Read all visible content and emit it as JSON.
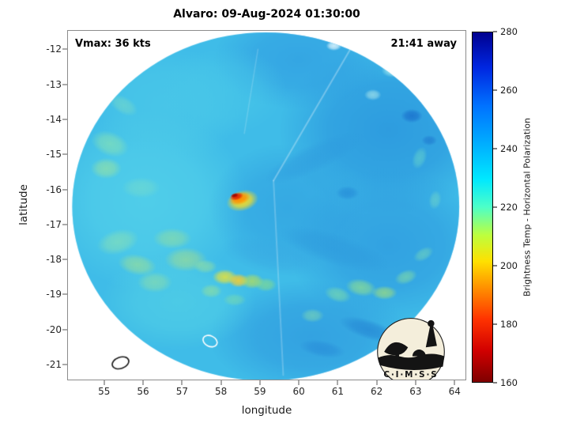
{
  "logo": {
    "text": "C·I·M·S·S"
  },
  "chart_data": {
    "type": "heatmap",
    "title": "Alvaro: 09-Aug-2024 01:30:00",
    "xlabel": "longitude",
    "ylabel": "latitude",
    "xlim": [
      54.05,
      64.3
    ],
    "ylim": [
      -21.45,
      -11.45
    ],
    "xticks": [
      55,
      56,
      57,
      58,
      59,
      60,
      61,
      62,
      63,
      64
    ],
    "yticks": [
      -12,
      -13,
      -14,
      -15,
      -16,
      -17,
      -18,
      -19,
      -20,
      -21
    ],
    "annotations": {
      "vmax": "Vmax: 36 kts",
      "eta": "21:41 away"
    },
    "colorbar": {
      "label": "Brightness Temp - Horizontal Polarization",
      "min": 160,
      "max": 280,
      "ticks": [
        160,
        180,
        200,
        220,
        240,
        260,
        280
      ],
      "stops": [
        {
          "pos": 0.0,
          "color": "#7f0000"
        },
        {
          "pos": 0.09,
          "color": "#d10000"
        },
        {
          "pos": 0.18,
          "color": "#ff3300"
        },
        {
          "pos": 0.27,
          "color": "#ff9100"
        },
        {
          "pos": 0.345,
          "color": "#ffe000"
        },
        {
          "pos": 0.42,
          "color": "#bdff3e"
        },
        {
          "pos": 0.5,
          "color": "#4dffc8"
        },
        {
          "pos": 0.58,
          "color": "#00e8ff"
        },
        {
          "pos": 0.67,
          "color": "#00b4ff"
        },
        {
          "pos": 0.79,
          "color": "#0072ff"
        },
        {
          "pos": 0.9,
          "color": "#0026e0"
        },
        {
          "pos": 1.0,
          "color": "#00008f"
        }
      ]
    },
    "disk": {
      "center_lon": 59.15,
      "center_lat": -16.49,
      "radius_deg": 4.97,
      "base_color": "#3fbce8"
    },
    "features": [
      [
        62.3,
        -14.3,
        2.8,
        2.4,
        0,
        "#2b97de",
        0.85
      ],
      [
        62.3,
        -17.6,
        2.6,
        2.2,
        0,
        "#2f9ce0",
        0.8
      ],
      [
        60.3,
        -20.2,
        2.6,
        1.6,
        0,
        "#2f9adf",
        0.75
      ],
      [
        60.0,
        -12.3,
        2.2,
        1.4,
        0,
        "#319fe2",
        0.75
      ],
      [
        56.1,
        -16.3,
        2.6,
        2.6,
        0,
        "#54d2ea",
        0.8
      ],
      [
        56.6,
        -13.6,
        2.0,
        1.7,
        0,
        "#4ccae9",
        0.7
      ],
      [
        56.9,
        -19.2,
        2.0,
        1.4,
        0,
        "#55d4e6",
        0.6
      ],
      [
        58.1,
        -13.2,
        1.6,
        1.3,
        0,
        "#49c8e9",
        0.55
      ],
      [
        59.7,
        -16.5,
        2.0,
        1.8,
        0,
        "#2f9de0",
        0.6
      ],
      [
        59.3,
        -17.9,
        1.3,
        0.5,
        12,
        "#38a8e3",
        0.5
      ],
      [
        60.4,
        -15.1,
        1.4,
        0.4,
        -25,
        "#2e9ade",
        0.5
      ],
      [
        60.9,
        -17.7,
        1.5,
        0.45,
        18,
        "#2d98dc",
        0.5
      ],
      [
        55.15,
        -14.7,
        0.5,
        0.35,
        20,
        "#8fe6ae",
        0.6
      ],
      [
        55.05,
        -15.4,
        0.4,
        0.3,
        0,
        "#a6e894",
        0.55
      ],
      [
        55.35,
        -17.5,
        0.55,
        0.35,
        -15,
        "#8ce2b2",
        0.6
      ],
      [
        55.85,
        -18.15,
        0.5,
        0.3,
        10,
        "#b5e87d",
        0.5
      ],
      [
        56.3,
        -18.65,
        0.45,
        0.3,
        0,
        "#9ce29a",
        0.5
      ],
      [
        55.95,
        -15.95,
        0.5,
        0.3,
        0,
        "#7fe0c4",
        0.45
      ],
      [
        56.75,
        -17.4,
        0.5,
        0.3,
        0,
        "#aae686",
        0.45
      ],
      [
        57.1,
        -18.0,
        0.55,
        0.35,
        0,
        "#c8e868",
        0.45
      ],
      [
        55.5,
        -13.6,
        0.4,
        0.25,
        30,
        "#8fe4b8",
        0.4
      ],
      [
        58.1,
        -18.5,
        0.32,
        0.22,
        0,
        "#e8e23a",
        0.85
      ],
      [
        58.45,
        -18.6,
        0.26,
        0.2,
        0,
        "#ffcf28",
        0.85
      ],
      [
        58.8,
        -18.62,
        0.3,
        0.22,
        0,
        "#bfe24f",
        0.7
      ],
      [
        59.15,
        -18.72,
        0.28,
        0.2,
        0,
        "#8fe07e",
        0.6
      ],
      [
        57.75,
        -18.9,
        0.28,
        0.2,
        0,
        "#9de490",
        0.55
      ],
      [
        58.35,
        -19.15,
        0.3,
        0.18,
        0,
        "#82dfa2",
        0.5
      ],
      [
        57.6,
        -18.2,
        0.3,
        0.2,
        0,
        "#a8e68c",
        0.5
      ],
      [
        58.55,
        -16.32,
        0.42,
        0.3,
        -15,
        "#ffdf1c",
        0.95
      ],
      [
        58.48,
        -16.26,
        0.28,
        0.18,
        -15,
        "#ff8a00",
        0.98
      ],
      [
        58.4,
        -16.2,
        0.18,
        0.11,
        -15,
        "#e01e00",
        1
      ],
      [
        58.35,
        -16.17,
        0.1,
        0.06,
        -15,
        "#9c0500",
        1
      ],
      [
        61.0,
        -19.0,
        0.35,
        0.22,
        15,
        "#82e0a6",
        0.6
      ],
      [
        61.6,
        -18.8,
        0.4,
        0.25,
        10,
        "#97e489",
        0.65
      ],
      [
        62.2,
        -18.95,
        0.33,
        0.2,
        0,
        "#b4e868",
        0.6
      ],
      [
        62.75,
        -18.5,
        0.3,
        0.2,
        -20,
        "#8fe49b",
        0.55
      ],
      [
        63.2,
        -17.85,
        0.28,
        0.18,
        -30,
        "#7fdfb4",
        0.5
      ],
      [
        60.35,
        -19.6,
        0.3,
        0.2,
        0,
        "#8fe2a8",
        0.5
      ],
      [
        63.1,
        -15.1,
        0.3,
        0.2,
        -70,
        "#6fdcc8",
        0.5
      ],
      [
        63.5,
        -16.3,
        0.25,
        0.18,
        -80,
        "#7fe0c2",
        0.45
      ],
      [
        62.9,
        -13.9,
        0.28,
        0.2,
        0,
        "#1565c8",
        0.65
      ],
      [
        63.35,
        -14.6,
        0.2,
        0.15,
        0,
        "#1a70cc",
        0.55
      ],
      [
        61.25,
        -16.1,
        0.3,
        0.2,
        0,
        "#1f80d4",
        0.5
      ],
      [
        61.8,
        -20.0,
        0.8,
        0.28,
        18,
        "#1f7cd0",
        0.55
      ],
      [
        60.6,
        -20.55,
        0.6,
        0.24,
        10,
        "#2484d6",
        0.5
      ],
      [
        62.7,
        -12.4,
        0.55,
        0.38,
        0,
        "#1b76cf",
        0.55
      ],
      [
        62.4,
        -12.6,
        0.28,
        0.2,
        0,
        "#b2f2f0",
        0.7
      ],
      [
        60.9,
        -11.9,
        0.2,
        0.14,
        0,
        "#eefbff",
        0.8
      ],
      [
        61.9,
        -13.3,
        0.22,
        0.16,
        0,
        "#c6f6ee",
        0.55
      ]
    ],
    "seams": [
      {
        "from": [
          61.4,
          -11.85
        ],
        "to": [
          59.35,
          -15.75
        ],
        "width": 2,
        "color": "rgba(255,255,255,0.3)"
      },
      {
        "from": [
          59.35,
          -15.75
        ],
        "to": [
          59.6,
          -21.3
        ],
        "width": 2,
        "color": "rgba(255,255,255,0.22)"
      },
      {
        "from": [
          58.95,
          -12.0
        ],
        "to": [
          58.6,
          -14.4
        ],
        "width": 1.5,
        "color": "rgba(255,255,255,0.18)"
      }
    ],
    "islands": [
      {
        "lon": 55.42,
        "lat": -20.95,
        "rx": 0.22,
        "ry": 0.16,
        "rot": -20,
        "stroke": "#1a1a1a"
      },
      {
        "lon": 57.72,
        "lat": -20.33,
        "rx": 0.19,
        "ry": 0.15,
        "rot": 25,
        "stroke": "#ffffff"
      }
    ]
  }
}
